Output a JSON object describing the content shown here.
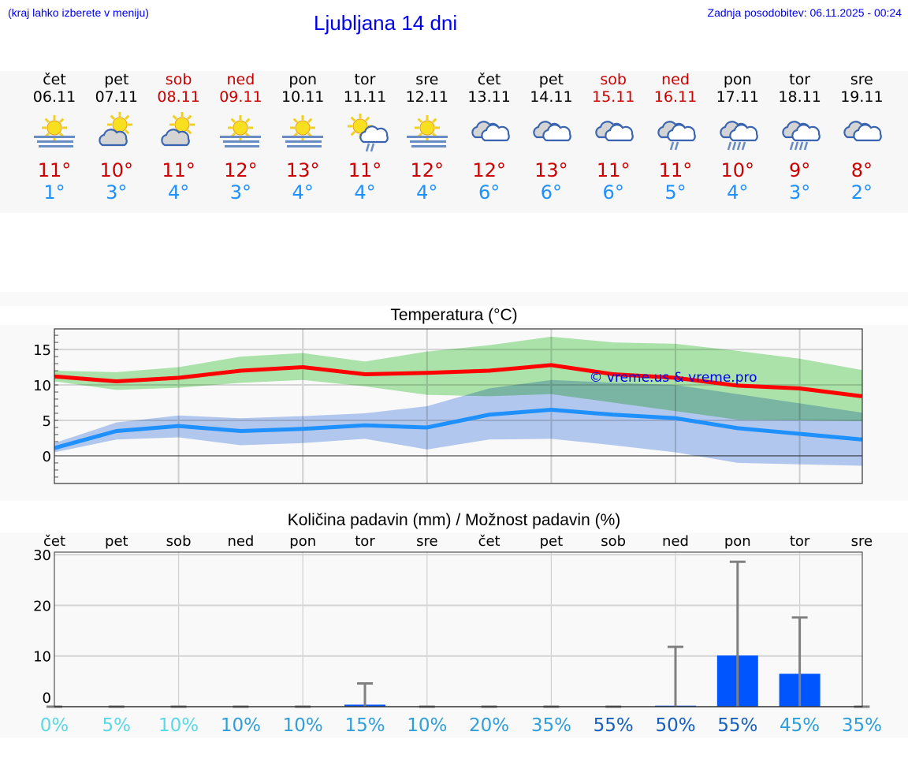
{
  "header": {
    "hint": "(kraj lahko izberete v meniju)",
    "title": "Ljubljana 14 dni",
    "updated": "Zadnja posodobitev: 06.11.2025 - 00:24"
  },
  "days": [
    {
      "name": "čet",
      "date": "06.11",
      "weekend": false,
      "icon": "sun-fog",
      "max": "11°",
      "min": "1°"
    },
    {
      "name": "pet",
      "date": "07.11",
      "weekend": false,
      "icon": "sun-cloud",
      "max": "10°",
      "min": "3°"
    },
    {
      "name": "sob",
      "date": "08.11",
      "weekend": true,
      "icon": "sun-cloud",
      "max": "11°",
      "min": "4°"
    },
    {
      "name": "ned",
      "date": "09.11",
      "weekend": true,
      "icon": "sun-fog",
      "max": "12°",
      "min": "3°"
    },
    {
      "name": "pon",
      "date": "10.11",
      "weekend": false,
      "icon": "sun-fog",
      "max": "13°",
      "min": "4°"
    },
    {
      "name": "tor",
      "date": "11.11",
      "weekend": false,
      "icon": "sun-cloud-rain",
      "max": "11°",
      "min": "4°"
    },
    {
      "name": "sre",
      "date": "12.11",
      "weekend": false,
      "icon": "sun-fog",
      "max": "12°",
      "min": "4°"
    },
    {
      "name": "čet",
      "date": "13.11",
      "weekend": false,
      "icon": "clouds",
      "max": "12°",
      "min": "6°"
    },
    {
      "name": "pet",
      "date": "14.11",
      "weekend": false,
      "icon": "clouds",
      "max": "13°",
      "min": "6°"
    },
    {
      "name": "sob",
      "date": "15.11",
      "weekend": true,
      "icon": "clouds",
      "max": "11°",
      "min": "6°"
    },
    {
      "name": "ned",
      "date": "16.11",
      "weekend": true,
      "icon": "clouds-light-rain",
      "max": "11°",
      "min": "5°"
    },
    {
      "name": "pon",
      "date": "17.11",
      "weekend": false,
      "icon": "clouds-rain",
      "max": "10°",
      "min": "4°"
    },
    {
      "name": "tor",
      "date": "18.11",
      "weekend": false,
      "icon": "clouds-rain",
      "max": "9°",
      "min": "3°"
    },
    {
      "name": "sre",
      "date": "19.11",
      "weekend": false,
      "icon": "clouds",
      "max": "8°",
      "min": "2°"
    }
  ],
  "colors": {
    "weekend": "#cc0000",
    "max": "#ff0000",
    "min": "#1e90ff",
    "maxBand": "#a0e4a0",
    "minBand": "#a4c0f0",
    "bar": "#0055ff",
    "whisker": "#808080"
  },
  "chart_data": [
    {
      "type": "line",
      "title": "Temperatura (°C)",
      "watermark": "© vreme.us & vreme.pro",
      "x": [
        "06.11",
        "07.11",
        "08.11",
        "09.11",
        "10.11",
        "11.11",
        "12.11",
        "13.11",
        "14.11",
        "15.11",
        "16.11",
        "17.11",
        "18.11",
        "19.11"
      ],
      "ylim": [
        -3.9,
        17.9
      ],
      "yticks": [
        0,
        5,
        10,
        15
      ],
      "grid": true,
      "series": [
        {
          "key": "max",
          "values": [
            11.2,
            10.5,
            11.0,
            12.0,
            12.5,
            11.5,
            11.7,
            12.0,
            12.8,
            11.5,
            11.0,
            9.9,
            9.5,
            8.4
          ],
          "band_upper": [
            12.0,
            11.8,
            12.5,
            14.0,
            14.5,
            13.3,
            14.7,
            15.6,
            16.8,
            16.0,
            15.8,
            14.8,
            13.7,
            12.1
          ],
          "band_lower": [
            10.5,
            9.3,
            9.6,
            10.3,
            10.7,
            9.8,
            8.6,
            8.4,
            8.7,
            7.5,
            6.3,
            5.1,
            5.0,
            4.9
          ]
        },
        {
          "key": "min",
          "values": [
            1.1,
            3.5,
            4.2,
            3.5,
            3.8,
            4.3,
            4.0,
            5.8,
            6.5,
            5.8,
            5.3,
            3.9,
            3.1,
            2.3
          ],
          "band_upper": [
            1.8,
            4.7,
            5.7,
            5.3,
            5.6,
            6.0,
            7.0,
            9.5,
            10.7,
            10.3,
            10.0,
            8.7,
            7.4,
            6.1
          ],
          "band_lower": [
            0.5,
            2.3,
            2.6,
            1.5,
            1.8,
            2.4,
            0.9,
            2.3,
            2.4,
            1.5,
            0.5,
            -1.0,
            -1.2,
            -1.4
          ]
        }
      ]
    },
    {
      "type": "bar",
      "title": "Količina padavin (mm) / Možnost padavin (%)",
      "categories": [
        "čet",
        "pet",
        "sob",
        "ned",
        "pon",
        "tor",
        "sre",
        "čet",
        "pet",
        "sob",
        "ned",
        "pon",
        "tor",
        "sre"
      ],
      "values": [
        0,
        0,
        0,
        0,
        0,
        0.4,
        0,
        0,
        0,
        0,
        0.2,
        10.1,
        6.5,
        0
      ],
      "error_upper": [
        0,
        0,
        0,
        0,
        0,
        4.6,
        0,
        0,
        0,
        0,
        11.8,
        28.6,
        17.6,
        0
      ],
      "ylim": [
        0,
        30.5
      ],
      "yticks": [
        0,
        10,
        20,
        30
      ],
      "grid": true,
      "probabilities": [
        "0%",
        "5%",
        "10%",
        "10%",
        "10%",
        "15%",
        "10%",
        "20%",
        "35%",
        "55%",
        "50%",
        "55%",
        "45%",
        "35%"
      ],
      "probability_colors": [
        "#5ad8e6",
        "#5ad8e6",
        "#5ad8e6",
        "#2f9fda",
        "#2f9fda",
        "#2f9fda",
        "#2f9fda",
        "#2f9fda",
        "#2f9fda",
        "#1660bd",
        "#1660bd",
        "#1660bd",
        "#2f9fda",
        "#2f9fda"
      ]
    }
  ]
}
